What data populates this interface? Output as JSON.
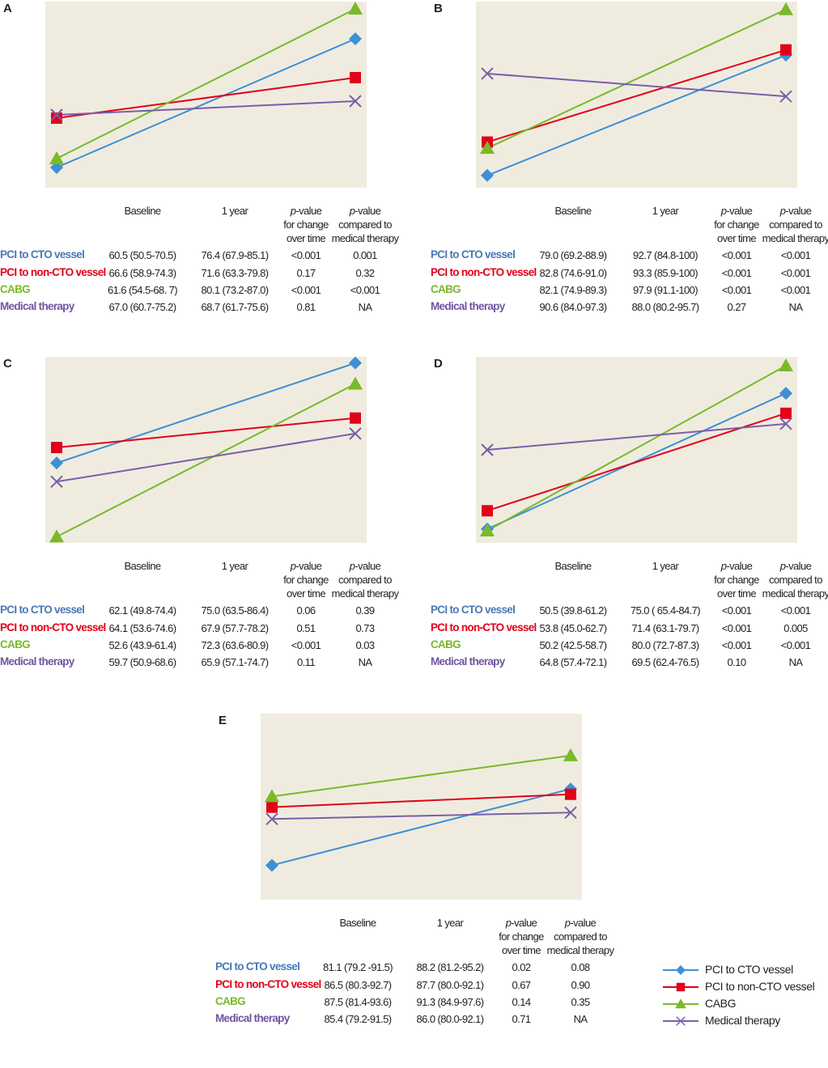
{
  "headers": {
    "baseline": "Baseline",
    "one_year": "1 year",
    "p_change_1": "p",
    "p_change_2": "-value",
    "p_change_3": "for change",
    "p_change_4": "over time",
    "p_med_1": "p",
    "p_med_2": "-value",
    "p_med_3": "compared to",
    "p_med_4": "medical therapy"
  },
  "series": [
    {
      "name": "PCI to CTO vessel",
      "row_label": "PCI to CTO  vessel",
      "color": "#3d8fd6",
      "text_color": "#4a78b5",
      "marker": "diamond"
    },
    {
      "name": "PCI to non-CTO vessel",
      "row_label": "PCI to non-CTO vessel",
      "color": "#e2001a",
      "text_color": "#e2001a",
      "marker": "square"
    },
    {
      "name": "CABG",
      "row_label": "CABG",
      "color": "#7ab929",
      "text_color": "#7ab929",
      "marker": "triangle"
    },
    {
      "name": "Medical therapy",
      "row_label": "Medical therapy",
      "color": "#7a5ea8",
      "text_color": "#6f55a0",
      "marker": "x"
    }
  ],
  "chart_data": [
    {
      "type": "line",
      "panel": "A",
      "categories": [
        "Baseline",
        "1 year"
      ],
      "ylim": [
        58,
        81
      ],
      "series": [
        {
          "name": "PCI to CTO vessel",
          "values": [
            60.5,
            76.4
          ],
          "baseline": "60.5 (50.5-70.5)",
          "one_year": "76.4 (67.9-85.1)",
          "p_change": "<0.001",
          "p_med": "0.001"
        },
        {
          "name": "PCI to non-CTO vessel",
          "values": [
            66.6,
            71.6
          ],
          "baseline": "66.6 (58.9-74.3)",
          "one_year": "71.6 (63.3-79.8)",
          "p_change": "0.17",
          "p_med": "0.32"
        },
        {
          "name": "CABG",
          "values": [
            61.6,
            80.1
          ],
          "baseline": "61.6 (54.5-68. 7)",
          "one_year": "80.1 (73.2-87.0)",
          "p_change": "<0.001",
          "p_med": "<0.001"
        },
        {
          "name": "Medical therapy",
          "values": [
            67.0,
            68.7
          ],
          "baseline": "67.0 (60.7-75.2)",
          "one_year": "68.7 (61.7-75.6)",
          "p_change": "0.81",
          "p_med": "NA"
        }
      ]
    },
    {
      "type": "line",
      "panel": "B",
      "categories": [
        "Baseline",
        "1 year"
      ],
      "ylim": [
        77.6,
        98.8
      ],
      "series": [
        {
          "name": "PCI to CTO vessel",
          "values": [
            79.0,
            92.7
          ],
          "baseline": "79.0 (69.2-88.9)",
          "one_year": "92.7 (84.8-100)",
          "p_change": "<0.001",
          "p_med": "<0.001"
        },
        {
          "name": "PCI to non-CTO vessel",
          "values": [
            82.8,
            93.3
          ],
          "baseline": "82.8 (74.6-91.0)",
          "one_year": "93.3 (85.9-100)",
          "p_change": "<0.001",
          "p_med": "<0.001"
        },
        {
          "name": "CABG",
          "values": [
            82.1,
            97.9
          ],
          "baseline": "82.1 (74.9-89.3)",
          "one_year": "97.9 (91.1-100)",
          "p_change": "<0.001",
          "p_med": "<0.001"
        },
        {
          "name": "Medical therapy",
          "values": [
            90.6,
            88.0
          ],
          "baseline": "90.6 (84.0-97.3)",
          "one_year": "88.0 (80.2-95.7)",
          "p_change": "0.27",
          "p_med": "NA"
        }
      ]
    },
    {
      "type": "line",
      "panel": "C",
      "categories": [
        "Baseline",
        "1 year"
      ],
      "ylim": [
        51.8,
        75.8
      ],
      "series": [
        {
          "name": "PCI to CTO vessel",
          "values": [
            62.1,
            75.0
          ],
          "baseline": "62.1 (49.8-74.4)",
          "one_year": "75.0 (63.5-86.4)",
          "p_change": "0.06",
          "p_med": "0.39"
        },
        {
          "name": "PCI to non-CTO vessel",
          "values": [
            64.1,
            67.9
          ],
          "baseline": "64.1 (53.6-74.6)",
          "one_year": "67.9 (57.7-78.2)",
          "p_change": "0.51",
          "p_med": "0.73"
        },
        {
          "name": "CABG",
          "values": [
            52.6,
            72.3
          ],
          "baseline": "52.6 (43.9-61.4)",
          "one_year": "72.3 (63.6-80.9)",
          "p_change": "<0.001",
          "p_med": "0.03"
        },
        {
          "name": "Medical therapy",
          "values": [
            59.7,
            65.9
          ],
          "baseline": "59.7 (50.9-68.6)",
          "one_year": "65.9 (57.1-74.7)",
          "p_change": "0.11",
          "p_med": "NA"
        }
      ]
    },
    {
      "type": "line",
      "panel": "D",
      "categories": [
        "Baseline",
        "1 year"
      ],
      "ylim": [
        48,
        81.6
      ],
      "series": [
        {
          "name": "PCI to CTO vessel",
          "values": [
            50.5,
            75.0
          ],
          "baseline": "50.5 (39.8-61.2)",
          "one_year": "75.0 ( 65.4-84.7)",
          "p_change": "<0.001",
          "p_med": "<0.001"
        },
        {
          "name": "PCI to non-CTO vessel",
          "values": [
            53.8,
            71.4
          ],
          "baseline": "53.8 (45.0-62.7)",
          "one_year": "71.4 (63.1-79.7)",
          "p_change": "<0.001",
          "p_med": "0.005"
        },
        {
          "name": "CABG",
          "values": [
            50.2,
            80.0
          ],
          "baseline": "50.2 (42.5-58.7)",
          "one_year": "80.0 (72.7-87.3)",
          "p_change": "<0.001",
          "p_med": "<0.001"
        },
        {
          "name": "Medical therapy",
          "values": [
            64.8,
            69.5
          ],
          "baseline": "64.8 (57.4-72.1)",
          "one_year": "69.5 (62.4-76.5)",
          "p_change": "0.10",
          "p_med": "NA"
        }
      ]
    },
    {
      "type": "line",
      "panel": "E",
      "categories": [
        "Baseline",
        "1 year"
      ],
      "ylim": [
        77.9,
        95.2
      ],
      "series": [
        {
          "name": "PCI to CTO vessel",
          "values": [
            81.1,
            88.2
          ],
          "baseline": "81.1 (79.2 -91.5)",
          "one_year": "88.2 (81.2-95.2)",
          "p_change": "0.02",
          "p_med": "0.08"
        },
        {
          "name": "PCI to non-CTO vessel",
          "values": [
            86.5,
            87.7
          ],
          "baseline": "86.5 (80.3-92.7)",
          "one_year": "87.7 (80.0-92.1)",
          "p_change": "0.67",
          "p_med": "0.90"
        },
        {
          "name": "CABG",
          "values": [
            87.5,
            91.3
          ],
          "baseline": "87.5 (81.4-93.6)",
          "one_year": "91.3 (84.9-97.6)",
          "p_change": "0.14",
          "p_med": "0.35"
        },
        {
          "name": "Medical therapy",
          "values": [
            85.4,
            86.0
          ],
          "baseline": "85.4 (79.2-91.5)",
          "one_year": "86.0 (80.0-92.1)",
          "p_change": "0.71",
          "p_med": "NA"
        }
      ]
    }
  ],
  "legend": {
    "position": "bottom-right"
  }
}
